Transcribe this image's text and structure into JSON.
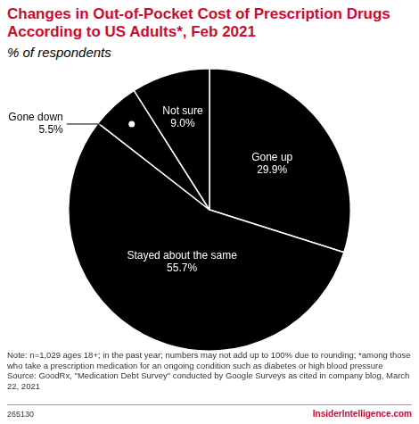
{
  "chart_data": {
    "type": "pie",
    "title": "Changes in Out-of-Pocket Cost of Prescription Drugs According to US Adults*, Feb 2021",
    "subtitle": "% of respondents",
    "categories": [
      "Gone up",
      "Stayed about the same",
      "Gone down",
      "Not sure"
    ],
    "values": [
      29.9,
      55.7,
      5.5,
      9.0
    ],
    "value_labels": [
      "29.9%",
      "55.7%",
      "5.5%",
      "9.0%"
    ],
    "color": "#000000",
    "data_labels": true,
    "note": "Note: n=1,029 ages 18+; in the past year; numbers may not add up to 100% due to rounding; *among those who take a prescription medication for an ongoing condition such as diabetes or high blood pressure",
    "source": "Source: GoodRx, \"Medication Debt Survey\" conducted by Google Surveys as cited in company blog, March 22, 2021",
    "chart_id": "265130",
    "brand": "InsiderIntelligence.com"
  }
}
